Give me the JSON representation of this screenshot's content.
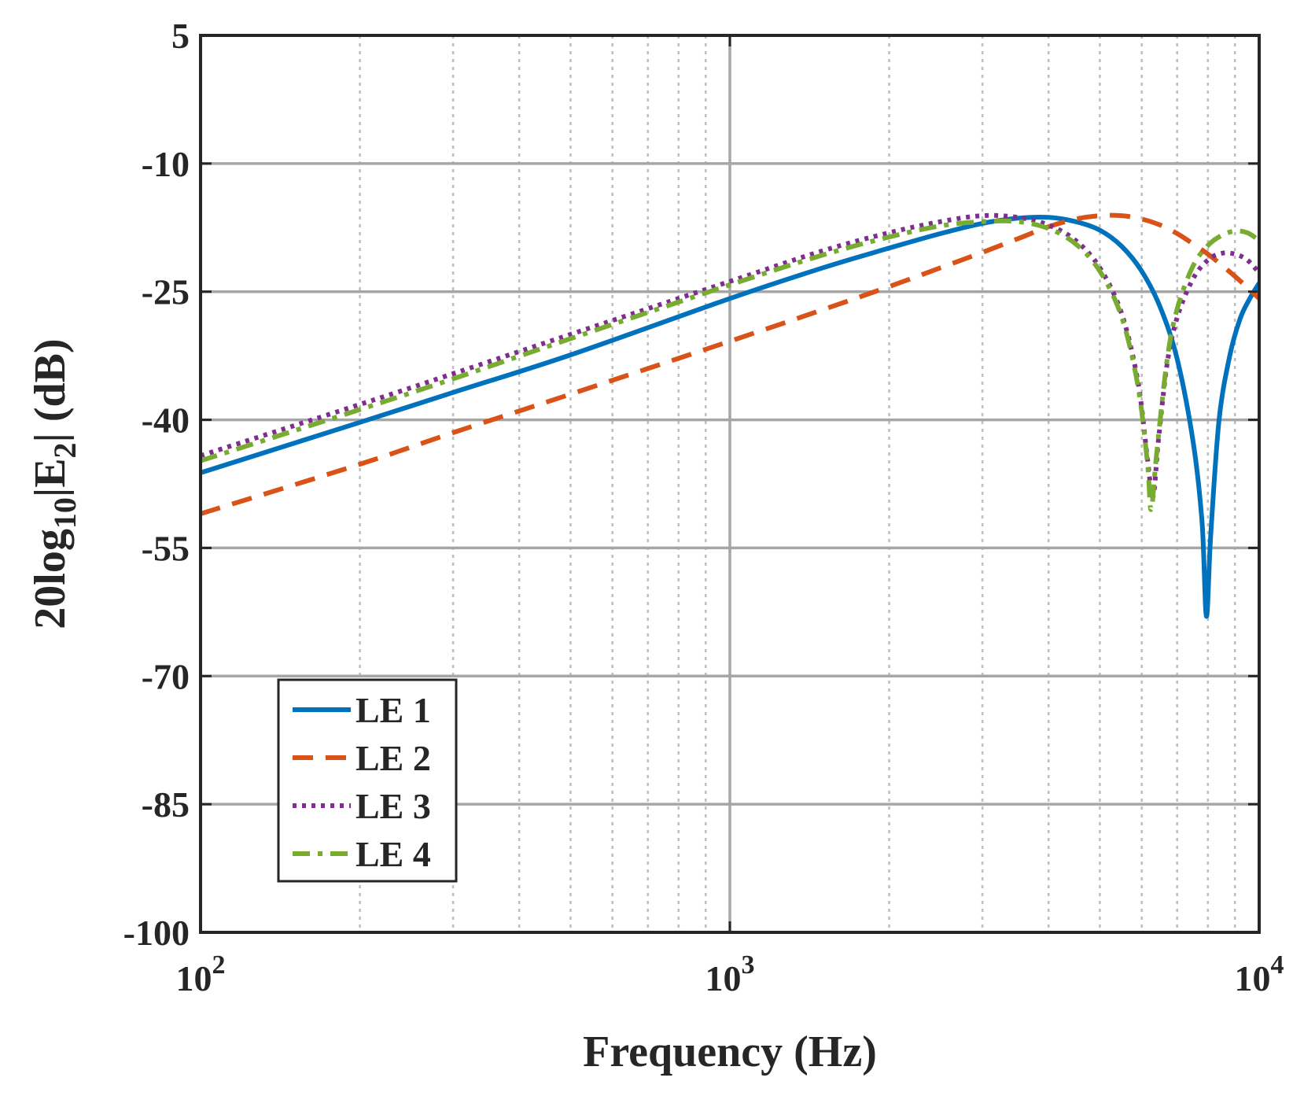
{
  "chart_data": {
    "type": "line",
    "xscale": "log",
    "xlim": [
      100,
      10000
    ],
    "ylim": [
      -100,
      5
    ],
    "xlabel": "Frequency (Hz)",
    "ylabel": {
      "prefix": "20log",
      "sub1": "10",
      "mid": "|E",
      "sub2": "2",
      "suffix": "| (dB)"
    },
    "yticks": [
      5,
      -10,
      -25,
      -40,
      -55,
      -70,
      -85,
      -100
    ],
    "ytick_labels": [
      "5",
      "-10",
      "-25",
      "-40",
      "-55",
      "-70",
      "-85",
      "-100"
    ],
    "xticks": [
      {
        "value": 100,
        "base": "10",
        "exp": "2"
      },
      {
        "value": 1000,
        "base": "10",
        "exp": "3"
      },
      {
        "value": 10000,
        "base": "10",
        "exp": "4"
      }
    ],
    "grid": true,
    "legend_position": "bottom-left",
    "series": [
      {
        "name": "LE 1",
        "color": "#0072BD",
        "dash": "solid",
        "points": [
          [
            100,
            -46.2
          ],
          [
            200,
            -40.3
          ],
          [
            300,
            -36.8
          ],
          [
            500,
            -32.4
          ],
          [
            1000,
            -25.8
          ],
          [
            1500,
            -22.2
          ],
          [
            2000,
            -19.9
          ],
          [
            2500,
            -18.2
          ],
          [
            3000,
            -17.0
          ],
          [
            3500,
            -16.4
          ],
          [
            4000,
            -16.3
          ],
          [
            4500,
            -16.8
          ],
          [
            5000,
            -17.8
          ],
          [
            5500,
            -19.7
          ],
          [
            6000,
            -22.6
          ],
          [
            6500,
            -26.8
          ],
          [
            7000,
            -32.9
          ],
          [
            7500,
            -42.5
          ],
          [
            7800,
            -52.0
          ],
          [
            7950,
            -63.0
          ],
          [
            8100,
            -53.5
          ],
          [
            8400,
            -40.0
          ],
          [
            8800,
            -32.5
          ],
          [
            9200,
            -28.2
          ],
          [
            9600,
            -25.8
          ],
          [
            10000,
            -24.0
          ]
        ]
      },
      {
        "name": "LE 2",
        "color": "#D95319",
        "dash": "dashed",
        "points": [
          [
            100,
            -51.0
          ],
          [
            200,
            -45.2
          ],
          [
            300,
            -41.5
          ],
          [
            500,
            -37.0
          ],
          [
            1000,
            -30.8
          ],
          [
            1500,
            -27.1
          ],
          [
            2000,
            -24.4
          ],
          [
            2500,
            -22.2
          ],
          [
            3000,
            -20.4
          ],
          [
            3500,
            -18.8
          ],
          [
            4000,
            -17.4
          ],
          [
            4500,
            -16.5
          ],
          [
            5000,
            -16.1
          ],
          [
            5500,
            -16.1
          ],
          [
            6000,
            -16.5
          ],
          [
            6500,
            -17.2
          ],
          [
            7000,
            -18.2
          ],
          [
            7500,
            -19.4
          ],
          [
            8000,
            -20.6
          ],
          [
            8500,
            -21.9
          ],
          [
            9000,
            -23.2
          ],
          [
            9500,
            -24.5
          ],
          [
            10000,
            -25.8
          ]
        ]
      },
      {
        "name": "LE 3",
        "color": "#7E2F8E",
        "dash": "dotted",
        "points": [
          [
            100,
            -44.2
          ],
          [
            200,
            -38.2
          ],
          [
            300,
            -34.6
          ],
          [
            500,
            -30.0
          ],
          [
            1000,
            -23.8
          ],
          [
            1500,
            -20.2
          ],
          [
            2000,
            -18.1
          ],
          [
            2500,
            -16.8
          ],
          [
            3000,
            -16.1
          ],
          [
            3500,
            -16.3
          ],
          [
            4000,
            -17.2
          ],
          [
            4500,
            -19.0
          ],
          [
            5000,
            -22.2
          ],
          [
            5500,
            -27.6
          ],
          [
            5900,
            -35.5
          ],
          [
            6150,
            -44.5
          ],
          [
            6300,
            -49.0
          ],
          [
            6450,
            -42.5
          ],
          [
            6700,
            -33.5
          ],
          [
            7000,
            -28.0
          ],
          [
            7500,
            -23.5
          ],
          [
            8000,
            -21.3
          ],
          [
            8500,
            -20.5
          ],
          [
            9000,
            -20.6
          ],
          [
            9500,
            -21.3
          ],
          [
            10000,
            -22.8
          ]
        ]
      },
      {
        "name": "LE 4",
        "color": "#77AC30",
        "dash": "dashdot",
        "points": [
          [
            100,
            -44.8
          ],
          [
            200,
            -38.8
          ],
          [
            300,
            -35.2
          ],
          [
            500,
            -30.5
          ],
          [
            1000,
            -24.2
          ],
          [
            1500,
            -20.7
          ],
          [
            2000,
            -18.6
          ],
          [
            2500,
            -17.3
          ],
          [
            3000,
            -16.8
          ],
          [
            3500,
            -16.8
          ],
          [
            4000,
            -17.6
          ],
          [
            4500,
            -19.4
          ],
          [
            5000,
            -22.6
          ],
          [
            5500,
            -28.0
          ],
          [
            5900,
            -36.0
          ],
          [
            6150,
            -45.0
          ],
          [
            6250,
            -50.5
          ],
          [
            6400,
            -44.0
          ],
          [
            6700,
            -33.0
          ],
          [
            7000,
            -27.0
          ],
          [
            7500,
            -22.0
          ],
          [
            8000,
            -19.6
          ],
          [
            8500,
            -18.4
          ],
          [
            9000,
            -17.9
          ],
          [
            9500,
            -18.1
          ],
          [
            10000,
            -19.0
          ]
        ]
      }
    ]
  }
}
